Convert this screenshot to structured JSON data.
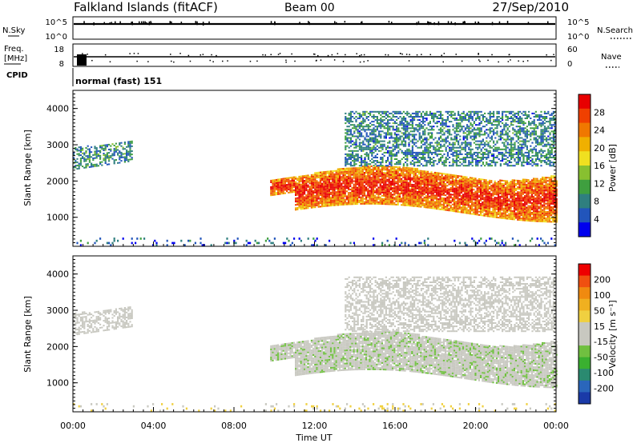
{
  "header": {
    "station": "Falkland Islands (fitACF)",
    "beam": "Beam 00",
    "date": "27/Sep/2010"
  },
  "left_labels": {
    "nsky": "N.Sky",
    "freq_line1": "Freq.",
    "freq_line2": "[MHz]",
    "cpid": "CPID"
  },
  "right_labels": {
    "nsearch": "N.Search",
    "nave": "Nave"
  },
  "noise_panel": {
    "left_ticks": [
      "10^5",
      "10^0"
    ],
    "right_ticks": [
      "10^5",
      "10^0"
    ]
  },
  "freq_panel": {
    "left_ticks": [
      "18",
      "8"
    ],
    "right_ticks": [
      "60",
      "0"
    ]
  },
  "cpid_text": "normal (fast) 151",
  "chart_data": [
    {
      "type": "heatmap",
      "panel": "power",
      "ylabel": "Slant Range [km]",
      "xlabel": "Time UT",
      "xlim": [
        0,
        24
      ],
      "ylim": [
        200,
        4500
      ],
      "x_ticks": [
        "00:00",
        "04:00",
        "08:00",
        "12:00",
        "16:00",
        "20:00",
        "00:00"
      ],
      "y_ticks": [
        1000,
        2000,
        3000,
        4000
      ],
      "colorbar": {
        "label": "Power [dB]",
        "ticks": [
          "28",
          "24",
          "20",
          "16",
          "12",
          "8",
          "4"
        ],
        "range": [
          0,
          32
        ],
        "colors": [
          "#0000ee",
          "#2255bb",
          "#2f7f7f",
          "#3f9f3f",
          "#88c030",
          "#f0e020",
          "#f0b000",
          "#f07800",
          "#f04000",
          "#e80000"
        ]
      },
      "regions": [
        {
          "t0": 0.0,
          "t1": 2.9,
          "r0": 2300,
          "r1": 3100,
          "power": 9
        },
        {
          "t0": 9.8,
          "t1": 24.0,
          "r0": 1100,
          "r1": 2200,
          "power": 22
        },
        {
          "t0": 13.5,
          "t1": 24.0,
          "r0": 2400,
          "r1": 3900,
          "power": 8
        },
        {
          "t0": 0.0,
          "t1": 24.0,
          "r0": 200,
          "r1": 400,
          "power": 6
        }
      ]
    },
    {
      "type": "heatmap",
      "panel": "velocity",
      "ylabel": "Slant Range [km]",
      "xlabel": "Time UT",
      "xlim": [
        0,
        24
      ],
      "ylim": [
        200,
        4500
      ],
      "x_ticks": [
        "00:00",
        "04:00",
        "08:00",
        "12:00",
        "16:00",
        "20:00",
        "00:00"
      ],
      "y_ticks": [
        1000,
        2000,
        3000,
        4000
      ],
      "colorbar": {
        "label": "Velocity [m s⁻¹]",
        "ticks": [
          "200",
          "100",
          "50",
          "15",
          "-15",
          "-50",
          "-100",
          "-200"
        ],
        "colors": [
          "#1a3aa8",
          "#2a66bb",
          "#2a8a70",
          "#3ab030",
          "#70c040",
          "#c8c8c0",
          "#c8c8c0",
          "#f0d040",
          "#f0b020",
          "#f08a10",
          "#f05010",
          "#ee0000"
        ]
      },
      "regions": [
        {
          "t0": 0.0,
          "t1": 2.9,
          "r0": 2300,
          "r1": 3100,
          "velocity": 0
        },
        {
          "t0": 9.8,
          "t1": 24.0,
          "r0": 1100,
          "r1": 2200,
          "velocity": -5
        },
        {
          "t0": 13.5,
          "t1": 24.0,
          "r0": 2400,
          "r1": 3900,
          "velocity": 0
        },
        {
          "t0": 0.0,
          "t1": 24.0,
          "r0": 200,
          "r1": 400,
          "velocity": 20
        }
      ]
    }
  ]
}
